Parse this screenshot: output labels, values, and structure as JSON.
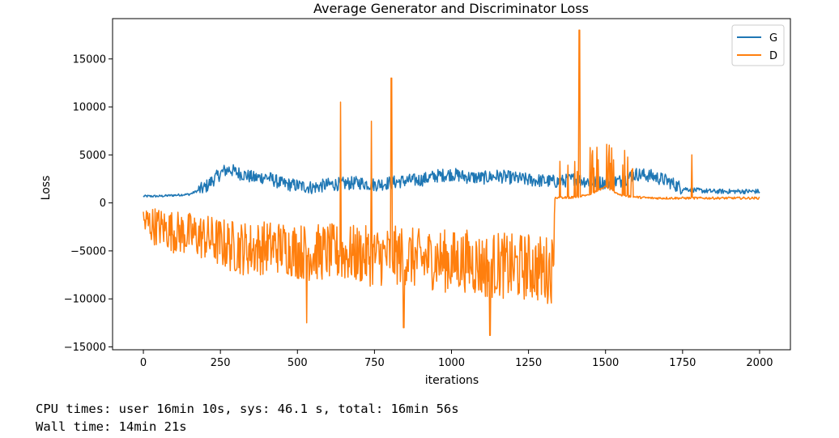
{
  "chart_data": {
    "type": "line",
    "title": "Average Generator and Discriminator Loss",
    "xlabel": "iterations",
    "ylabel": "Loss",
    "xlim": [
      -100,
      2100
    ],
    "ylim": [
      -15300,
      19200
    ],
    "xticks": [
      0,
      250,
      500,
      750,
      1000,
      1250,
      1500,
      1750,
      2000
    ],
    "yticks": [
      -15000,
      -10000,
      -5000,
      0,
      5000,
      10000,
      15000
    ],
    "ytick_labels": [
      "−15000",
      "−10000",
      "−5000",
      "0",
      "5000",
      "10000",
      "15000"
    ],
    "grid": false,
    "legend_position": "top-right",
    "series": [
      {
        "name": "G",
        "color": "#1f77b4",
        "x": [
          0,
          50,
          100,
          150,
          200,
          230,
          260,
          280,
          300,
          330,
          360,
          400,
          450,
          500,
          550,
          600,
          650,
          700,
          750,
          800,
          850,
          900,
          950,
          1000,
          1050,
          1100,
          1150,
          1200,
          1250,
          1300,
          1350,
          1400,
          1450,
          1500,
          1550,
          1600,
          1650,
          1700,
          1750,
          1800,
          1850,
          1900,
          1950,
          2000
        ],
        "y": [
          700,
          700,
          800,
          900,
          1600,
          2500,
          3300,
          3500,
          3200,
          2900,
          2600,
          2700,
          2000,
          1800,
          1600,
          1900,
          2000,
          2100,
          1900,
          2100,
          2300,
          2400,
          2800,
          3000,
          2700,
          2600,
          2800,
          2600,
          2400,
          2300,
          2200,
          2500,
          2200,
          2100,
          2300,
          3000,
          2800,
          2300,
          1500,
          1300,
          1200,
          1200,
          1200,
          1200
        ]
      },
      {
        "name": "D",
        "color": "#ff7f0e",
        "x": [
          0,
          50,
          100,
          150,
          200,
          250,
          300,
          350,
          400,
          450,
          500,
          550,
          600,
          650,
          700,
          750,
          800,
          850,
          900,
          950,
          1000,
          1050,
          1100,
          1150,
          1200,
          1250,
          1300,
          1330,
          1335,
          1350,
          1400,
          1450,
          1500,
          1550,
          1600,
          1650,
          1700,
          1750,
          1800,
          1850,
          1900,
          1950,
          2000
        ],
        "y": [
          -2000,
          -2500,
          -3000,
          -3300,
          -3600,
          -4200,
          -4600,
          -4800,
          -4600,
          -4600,
          -5000,
          -5200,
          -5100,
          -5300,
          -5400,
          -5600,
          -5500,
          -5500,
          -6000,
          -5800,
          -6200,
          -6000,
          -6600,
          -6400,
          -6800,
          -6600,
          -7000,
          -6800,
          500,
          500,
          600,
          900,
          1700,
          800,
          600,
          500,
          500,
          500,
          500,
          500,
          500,
          500,
          500
        ]
      }
    ],
    "spikes": [
      {
        "series": "D",
        "x": 640,
        "y": 10500
      },
      {
        "series": "D",
        "x": 740,
        "y": 8500
      },
      {
        "series": "D",
        "x": 805,
        "y": 13000
      },
      {
        "series": "D",
        "x": 1415,
        "y": 18000
      },
      {
        "series": "D",
        "x": 1780,
        "y": 5000
      },
      {
        "series": "D",
        "x": 1125,
        "y": -13800
      },
      {
        "series": "D",
        "x": 845,
        "y": -13000
      },
      {
        "series": "D",
        "x": 530,
        "y": -12500
      }
    ]
  },
  "output": {
    "cpu_times": "CPU times: user 16min 10s, sys: 46.1 s, total: 16min 56s",
    "wall_time": "Wall time: 14min 21s"
  }
}
